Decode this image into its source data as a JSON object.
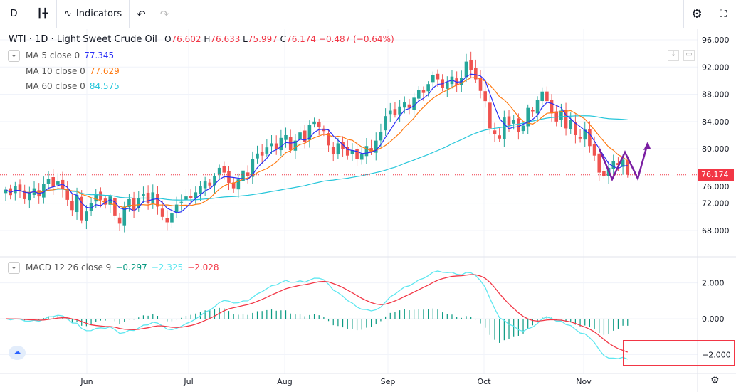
{
  "toolbar": {
    "interval": "D",
    "indicators_label": "Indicators"
  },
  "header": {
    "symbol": "WTI",
    "interval": "1D",
    "name": "Light Sweet Crude Oil",
    "open": "76.602",
    "high": "76.633",
    "low": "75.997",
    "close": "76.174",
    "change": "−0.487 (−0.64%)"
  },
  "studies": [
    {
      "label": "MA 5 close 0",
      "value": "77.345",
      "color": "#2a2ef5"
    },
    {
      "label": "MA 10 close 0",
      "value": "77.629",
      "color": "#ff7a12"
    },
    {
      "label": "MA 60 close 0",
      "value": "84.575",
      "color": "#26c6da"
    }
  ],
  "macd": {
    "label": "MACD 12 26 close 9",
    "hist": "−0.297",
    "macd": "−2.325",
    "signal": "−2.028",
    "hist_color": "#089981",
    "macd_color": "#5ee7f0",
    "signal_color": "#f23645"
  },
  "chart_data": {
    "type": "candlestick",
    "price_ticks": [
      "96.000",
      "92.000",
      "88.000",
      "84.000",
      "80.000",
      "76.000",
      "72.000",
      "68.000"
    ],
    "last_price": "76.174",
    "macd_ticks": [
      "2.000",
      "0.000",
      "−2.000"
    ],
    "x_ticks": [
      "Jun",
      "Jul",
      "Aug",
      "Sep",
      "Oct",
      "Nov"
    ],
    "up_color": "#26a69a",
    "down_color": "#ef5350",
    "closes": [
      74.0,
      73.2,
      74.5,
      73.8,
      72.6,
      73.5,
      74.2,
      73.0,
      74.8,
      75.6,
      74.4,
      75.2,
      74.0,
      72.5,
      71.0,
      73.2,
      69.5,
      70.8,
      72.0,
      73.4,
      72.5,
      71.8,
      73.0,
      70.2,
      69.0,
      71.5,
      72.6,
      71.0,
      72.8,
      73.4,
      72.0,
      73.6,
      71.5,
      70.0,
      69.2,
      70.5,
      71.8,
      72.2,
      73.0,
      72.8,
      73.6,
      74.5,
      75.2,
      74.6,
      76.0,
      77.2,
      76.5,
      75.0,
      74.2,
      75.5,
      76.8,
      76.0,
      78.5,
      79.3,
      79.0,
      80.2,
      80.8,
      80.0,
      81.6,
      82.0,
      79.8,
      81.2,
      82.4,
      81.0,
      83.5,
      84.0,
      83.2,
      82.6,
      80.5,
      79.2,
      80.8,
      80.0,
      79.0,
      79.8,
      78.5,
      79.2,
      80.4,
      79.6,
      81.2,
      82.5,
      84.8,
      85.6,
      85.0,
      86.2,
      86.8,
      86.0,
      87.5,
      88.6,
      88.2,
      89.5,
      90.8,
      90.2,
      89.0,
      89.8,
      90.6,
      89.4,
      90.4,
      92.8,
      91.6,
      90.2,
      88.5,
      87.0,
      83.0,
      82.2,
      81.5,
      84.6,
      83.4,
      84.2,
      82.5,
      83.4,
      86.0,
      85.5,
      87.2,
      88.4,
      87.0,
      85.2,
      84.0,
      85.6,
      83.0,
      84.2,
      82.0,
      81.5,
      82.8,
      80.4,
      79.0,
      76.5,
      76.0,
      77.2,
      78.2,
      77.6,
      78.4,
      76.174
    ]
  }
}
